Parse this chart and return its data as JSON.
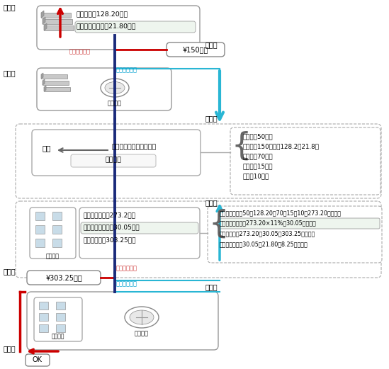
{
  "bg_color": "#ffffff",
  "supplier_label": "供货商",
  "supplier2_label": "供货商",
  "contractor_label": "承包人",
  "owner_label": "发包人",
  "owner2_label": "发包人",
  "ok_label": "OK",
  "box1_line1": "除税价格：128.20万元",
  "box1_line2": "增值税销项税额：21.80万元",
  "label_supplier_sale": "供货商的销项",
  "label_contractor_input1": "承包人的进项",
  "price_label1": "¥150万元",
  "invoice_label": "专用发票",
  "constr_label1": "施工",
  "constr_label2": "人工、材料、机械、管理",
  "constr_label3": "应税服务",
  "cost_line1": "人工费：50万元",
  "cost_line2": "材料费：150万元（128.2＋21.8）",
  "cost_line3": "机械费：70万元",
  "cost_line4": "管理费：15万元",
  "cost_line5": "利润：10万元",
  "box3_line1": "税前工程造价：273.2万元",
  "box3_line2": "增值税销项税额：30.05万元",
  "box3_line3": "工程总造价：303.25万元",
  "calc_line1": "税前工程造价：50＋128.20＋70＋15＋10＝273.20（万元）",
  "calc_line2": "增值税销项税额：273.20×11%＝30.05（万元）",
  "calc_line3": "工程总造价：273.20＋30.05＝303.25（万元）",
  "calc_line4": "应纳增值税额：30.05－21.80＝8.25（万元）",
  "label_contractor_sale": "承包人的销项",
  "label_owner_input": "发包人的进项",
  "price_label2": "¥303.25万元",
  "invoice_label2": "专用发票",
  "yingshuifuwu": "应税服务",
  "yingshuifuwu2": "应税服务"
}
